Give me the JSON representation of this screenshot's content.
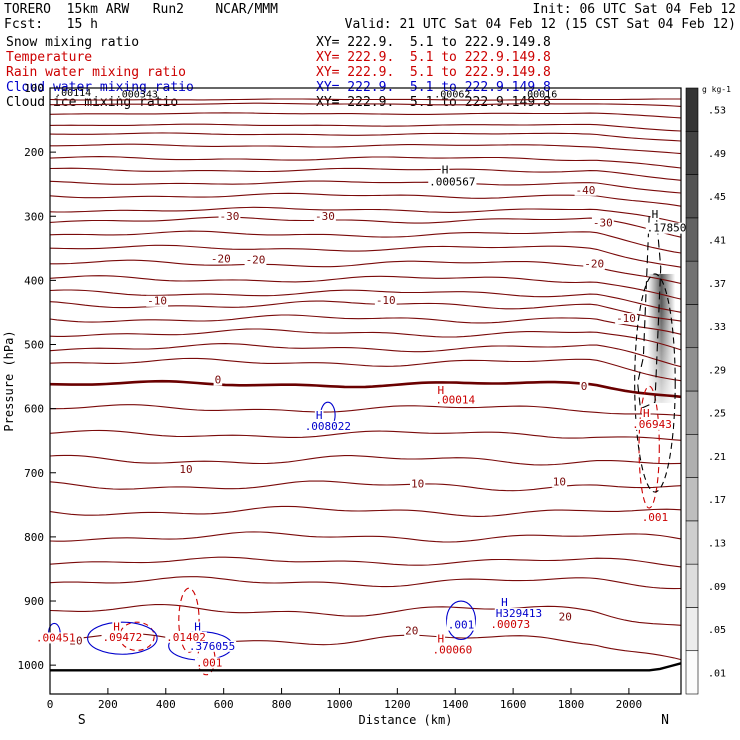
{
  "header": {
    "model": "TORERO  15km ARW   Run2    NCAR/MMM",
    "init": "Init: 06 UTC Sat 04 Feb 12",
    "fcst": "Fcst:   15 h",
    "valid": "Valid: 21 UTC Sat 04 Feb 12 (15 CST Sat 04 Feb 12)",
    "fields": [
      {
        "name": "Snow mixing ratio",
        "xy": "XY= 222.9.  5.1 to 222.9.149.8",
        "color": "#000000"
      },
      {
        "name": "Temperature",
        "xy": "XY= 222.9.  5.1 to 222.9.149.8",
        "color": "#cc0000"
      },
      {
        "name": "Rain water mixing ratio",
        "xy": "XY= 222.9.  5.1 to 222.9.149.8",
        "color": "#cc0000"
      },
      {
        "name": "Cloud water mixing ratio",
        "xy": "XY= 222.9.  5.1 to 222.9.149.8",
        "color": "#0000cc"
      },
      {
        "name": "Cloud ice mixing ratio",
        "xy": "XY= 222.9.  5.1 to 222.9.149.8",
        "color": "#000000"
      }
    ]
  },
  "chart_data": {
    "type": "cross-section contour",
    "xlabel": "Distance (km)",
    "ylabel": "Pressure (hPa)",
    "xlim": [
      0,
      2180
    ],
    "ylim": [
      1045,
      100
    ],
    "x_ticks": [
      0,
      200,
      400,
      600,
      800,
      1000,
      1200,
      1400,
      1600,
      1800,
      2000
    ],
    "y_ticks": [
      100,
      200,
      300,
      400,
      500,
      600,
      700,
      800,
      900,
      1000
    ],
    "end_labels": {
      "left": "S",
      "right": "N"
    },
    "temperature_contours_C": [
      -40,
      -30,
      -20,
      -10,
      0,
      10,
      20
    ],
    "temperature_labels": [
      {
        "text": "-40",
        "x": 1850,
        "p": 265
      },
      {
        "text": "-30",
        "x": 620,
        "p": 306
      },
      {
        "text": "-30",
        "x": 950,
        "p": 306
      },
      {
        "text": "-30",
        "x": 1910,
        "p": 316
      },
      {
        "text": "-20",
        "x": 590,
        "p": 372
      },
      {
        "text": "-20",
        "x": 710,
        "p": 374
      },
      {
        "text": "-20",
        "x": 1880,
        "p": 380
      },
      {
        "text": "-10",
        "x": 370,
        "p": 438
      },
      {
        "text": "-10",
        "x": 1160,
        "p": 437
      },
      {
        "text": "-10",
        "x": 1990,
        "p": 465
      },
      {
        "text": "0",
        "x": 580,
        "p": 561
      },
      {
        "text": "0",
        "x": 1845,
        "p": 571
      },
      {
        "text": "10",
        "x": 470,
        "p": 700
      },
      {
        "text": "10",
        "x": 1270,
        "p": 723
      },
      {
        "text": "10",
        "x": 1760,
        "p": 720
      },
      {
        "text": "20",
        "x": 90,
        "p": 968
      },
      {
        "text": "20",
        "x": 1250,
        "p": 952
      },
      {
        "text": "20",
        "x": 1780,
        "p": 930
      }
    ],
    "extrema_labels": [
      {
        "text": "H",
        "x": 1365,
        "p": 233,
        "color": "#000000"
      },
      {
        "text": ".000567",
        "x": 1390,
        "p": 252,
        "color": "#000000"
      },
      {
        "text": "H",
        "x": 2090,
        "p": 303,
        "color": "#000000"
      },
      {
        "text": ".17850",
        "x": 2130,
        "p": 324,
        "color": "#000000"
      },
      {
        "text": "H",
        "x": 1350,
        "p": 577,
        "color": "#cc0000"
      },
      {
        "text": ".00014",
        "x": 1400,
        "p": 592,
        "color": "#cc0000"
      },
      {
        "text": "H",
        "x": 930,
        "p": 616,
        "color": "#0000cc"
      },
      {
        "text": ".008022",
        "x": 960,
        "p": 633,
        "color": "#0000cc"
      },
      {
        "text": "H",
        "x": 2060,
        "p": 613,
        "color": "#cc0000"
      },
      {
        "text": ".06943",
        "x": 2080,
        "p": 630,
        "color": "#cc0000"
      },
      {
        "text": ".001",
        "x": 2090,
        "p": 775,
        "color": "#cc0000"
      },
      {
        "text": ".001",
        "x": 1420,
        "p": 943,
        "color": "#0000cc"
      },
      {
        "text": "H",
        "x": 1570,
        "p": 908,
        "color": "#0000cc"
      },
      {
        "text": "H329413",
        "x": 1620,
        "p": 925,
        "color": "#0000cc"
      },
      {
        "text": ".00073",
        "x": 1590,
        "p": 942,
        "color": "#cc0000"
      },
      {
        "text": "H",
        "x": 1350,
        "p": 965,
        "color": "#cc0000"
      },
      {
        "text": ".00060",
        "x": 1390,
        "p": 982,
        "color": "#cc0000"
      },
      {
        "text": ".00451",
        "x": 20,
        "p": 963,
        "color": "#cc0000"
      },
      {
        "text": "H",
        "x": 230,
        "p": 946,
        "color": "#cc0000"
      },
      {
        "text": ".09472",
        "x": 250,
        "p": 962,
        "color": "#cc0000"
      },
      {
        "text": "H",
        "x": 510,
        "p": 946,
        "color": "#0000cc"
      },
      {
        "text": ".01402",
        "x": 470,
        "p": 962,
        "color": "#cc0000"
      },
      {
        "text": ".376055",
        "x": 560,
        "p": 976,
        "color": "#0000cc"
      },
      {
        "text": ".001",
        "x": 550,
        "p": 1002,
        "color": "#cc0000"
      }
    ],
    "top_overlap_labels": [
      {
        "text": ".00114",
        "x": 80,
        "p": 108
      },
      {
        "text": ".000343",
        "x": 300,
        "p": 110
      },
      {
        "text": ".00062",
        "x": 1390,
        "p": 110
      },
      {
        "text": ".00016",
        "x": 1690,
        "p": 110
      }
    ],
    "colorbar": {
      "unit": "g kg-1",
      "levels": [
        0.01,
        0.05,
        0.09,
        0.13,
        0.17,
        0.21,
        0.25,
        0.29,
        0.33,
        0.37,
        0.41,
        0.45,
        0.49,
        0.53
      ]
    }
  }
}
